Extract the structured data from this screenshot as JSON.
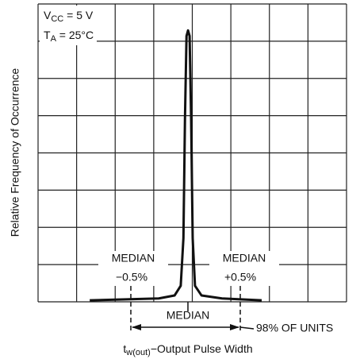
{
  "chart_data": {
    "type": "line",
    "conditions": [
      {
        "symbol": "V",
        "subscript": "CC",
        "text": " = 5 V"
      },
      {
        "symbol": "T",
        "subscript": "A",
        "text": " = 25°C"
      }
    ],
    "x_label": {
      "symbol": "t",
      "subscript": "w(out)",
      "text": "−Output Pulse Width"
    },
    "y_label": "Relative Frequency of Occurrence",
    "annotations": {
      "left_median": "MEDIAN",
      "left_pct": "−0.5%",
      "right_median": "MEDIAN",
      "right_pct": "+0.5%",
      "center_median": "MEDIAN",
      "units": "98% OF UNITS"
    },
    "x": [
      1.34,
      3.13,
      3.54,
      3.7,
      3.77,
      3.81,
      3.85,
      3.89,
      3.93,
      3.97,
      4.01,
      4.07,
      4.24,
      4.77,
      5.8
    ],
    "values": [
      0.04,
      0.09,
      0.17,
      0.43,
      1.71,
      4.9,
      7.14,
      7.29,
      7.14,
      4.9,
      1.71,
      0.43,
      0.17,
      0.09,
      0.04
    ],
    "color": "#111111",
    "xlim": [
      0,
      8
    ],
    "ylim": [
      0,
      8
    ],
    "grid": true
  }
}
